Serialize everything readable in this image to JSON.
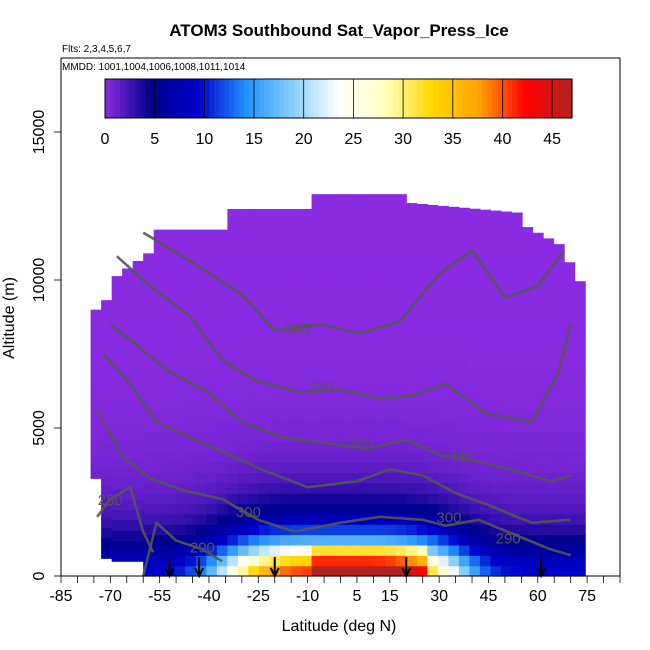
{
  "chart_data": {
    "type": "heatmap",
    "title": "ATOM3 Southbound Sat_Vapor_Press_Ice",
    "flights_note": "Flts: 2,3,4,5,6,7",
    "dates_note": "MMDD: 1001,1004,1006,1008,1011,1014",
    "xlabel": "Latitude (deg N)",
    "ylabel": "Altitude (m)",
    "xlim": [
      -85,
      85
    ],
    "ylim": [
      0,
      17500
    ],
    "x_ticks": [
      -85,
      -70,
      -55,
      -40,
      -25,
      -10,
      5,
      15,
      30,
      45,
      60,
      75
    ],
    "y_ticks": [
      0,
      5000,
      10000,
      15000
    ],
    "colorbar": {
      "range": [
        0,
        47
      ],
      "ticks": [
        0,
        5,
        10,
        15,
        20,
        25,
        30,
        35,
        40,
        45
      ],
      "colors": [
        "#8a2be2",
        "#00008b",
        "#0000cd",
        "#1e90ff",
        "#87cefa",
        "#ffffff",
        "#ffffc0",
        "#ffd700",
        "#ffa500",
        "#ff0000",
        "#b22222"
      ]
    },
    "contours": [
      {
        "label": "280",
        "lat": -70,
        "alt": 2400
      },
      {
        "label": "290",
        "lat": -42,
        "alt": 800
      },
      {
        "label": "300",
        "lat": -28,
        "alt": 2000
      },
      {
        "label": "310",
        "lat": 37,
        "alt": 3900
      },
      {
        "label": "320",
        "lat": 6,
        "alt": 4300
      },
      {
        "label": "330",
        "lat": -6,
        "alt": 6200
      },
      {
        "label": "340",
        "lat": -13,
        "alt": 8200
      },
      {
        "label": "300",
        "lat": 33,
        "alt": 1800
      },
      {
        "label": "290",
        "lat": 51,
        "alt": 1100
      }
    ],
    "flight_markers_lat": [
      -52,
      -43,
      -20,
      20,
      61
    ]
  }
}
